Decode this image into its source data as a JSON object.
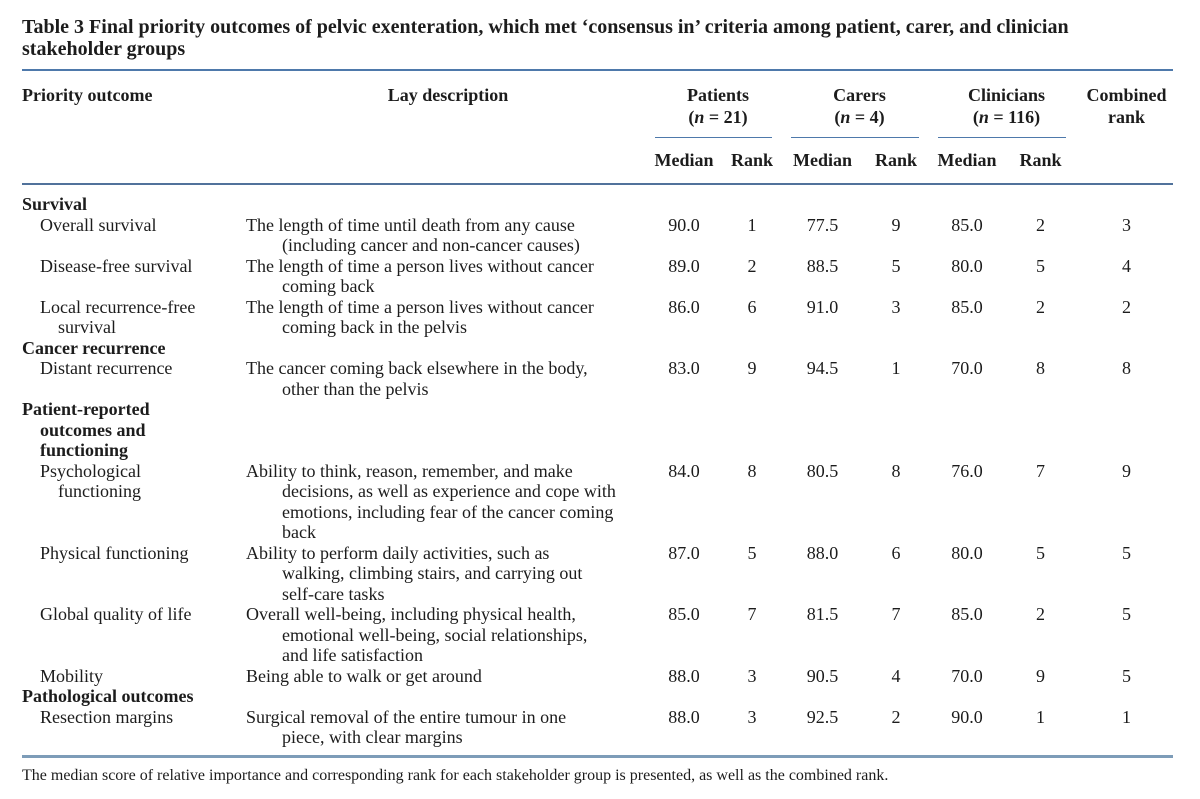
{
  "colors": {
    "rule-top": "#4e79ab",
    "rule-header": "#51729b",
    "rule-footer": "#7d9cb8",
    "rule-group": "#4e79ab",
    "ink": "#1c1c1c"
  },
  "title": "Table 3 Final priority outcomes of pelvic exenteration, which met ‘consensus in’ criteria among patient, carer, and clinician\nstakeholder groups",
  "header": {
    "col_outcome": "Priority outcome",
    "col_desc": "Lay description",
    "col_combined": "Combined\nrank",
    "median": "Median",
    "rank": "Rank",
    "groups": [
      {
        "name": "Patients",
        "n_open": "(",
        "n_italic": "n",
        "n_rest": " = 21)"
      },
      {
        "name": "Carers",
        "n_open": "(",
        "n_italic": "n",
        "n_rest": " = 4)"
      },
      {
        "name": "Clinicians",
        "n_open": "(",
        "n_italic": "n",
        "n_rest": " = 116)"
      }
    ]
  },
  "table": {
    "rows": [
      {
        "type": "section",
        "label": "Survival"
      },
      {
        "type": "data",
        "outcome": "Overall survival",
        "description": "The length of time until death from any cause\n(including cancer and non-cancer causes)",
        "patients": {
          "median": "90.0",
          "rank": "1"
        },
        "carers": {
          "median": "77.5",
          "rank": "9"
        },
        "clinicians": {
          "median": "85.0",
          "rank": "2"
        },
        "combined_rank": "3"
      },
      {
        "type": "data",
        "outcome": "Disease-free survival",
        "description": "The length of time a person lives without cancer\ncoming back",
        "patients": {
          "median": "89.0",
          "rank": "2"
        },
        "carers": {
          "median": "88.5",
          "rank": "5"
        },
        "clinicians": {
          "median": "80.0",
          "rank": "5"
        },
        "combined_rank": "4"
      },
      {
        "type": "data",
        "outcome": "Local recurrence-free\nsurvival",
        "description": "The length of time a person lives without cancer\ncoming back in the pelvis",
        "patients": {
          "median": "86.0",
          "rank": "6"
        },
        "carers": {
          "median": "91.0",
          "rank": "3"
        },
        "clinicians": {
          "median": "85.0",
          "rank": "2"
        },
        "combined_rank": "2"
      },
      {
        "type": "section",
        "label": "Cancer recurrence"
      },
      {
        "type": "data",
        "outcome": "Distant recurrence",
        "description": "The cancer coming back elsewhere in the body,\nother than the pelvis",
        "patients": {
          "median": "83.0",
          "rank": "9"
        },
        "carers": {
          "median": "94.5",
          "rank": "1"
        },
        "clinicians": {
          "median": "70.0",
          "rank": "8"
        },
        "combined_rank": "8"
      },
      {
        "type": "section",
        "label": "Patient-reported\noutcomes and\nfunctioning"
      },
      {
        "type": "data",
        "outcome": "Psychological\nfunctioning",
        "description": "Ability to think, reason, remember, and make\ndecisions, as well as experience and cope with\nemotions, including fear of the cancer coming\nback",
        "patients": {
          "median": "84.0",
          "rank": "8"
        },
        "carers": {
          "median": "80.5",
          "rank": "8"
        },
        "clinicians": {
          "median": "76.0",
          "rank": "7"
        },
        "combined_rank": "9"
      },
      {
        "type": "data",
        "outcome": "Physical functioning",
        "description": "Ability to perform daily activities, such as\nwalking, climbing stairs, and carrying out\nself-care tasks",
        "patients": {
          "median": "87.0",
          "rank": "5"
        },
        "carers": {
          "median": "88.0",
          "rank": "6"
        },
        "clinicians": {
          "median": "80.0",
          "rank": "5"
        },
        "combined_rank": "5"
      },
      {
        "type": "data",
        "outcome": "Global quality of life",
        "description": "Overall well-being, including physical health,\nemotional well-being, social relationships,\nand life satisfaction",
        "patients": {
          "median": "85.0",
          "rank": "7"
        },
        "carers": {
          "median": "81.5",
          "rank": "7"
        },
        "clinicians": {
          "median": "85.0",
          "rank": "2"
        },
        "combined_rank": "5"
      },
      {
        "type": "data",
        "outcome": "Mobility",
        "description": "Being able to walk or get around",
        "patients": {
          "median": "88.0",
          "rank": "3"
        },
        "carers": {
          "median": "90.5",
          "rank": "4"
        },
        "clinicians": {
          "median": "70.0",
          "rank": "9"
        },
        "combined_rank": "5"
      },
      {
        "type": "section",
        "label": "Pathological outcomes"
      },
      {
        "type": "data",
        "outcome": "Resection margins",
        "description": "Surgical removal of the entire tumour in one\npiece, with clear margins",
        "patients": {
          "median": "88.0",
          "rank": "3"
        },
        "carers": {
          "median": "92.5",
          "rank": "2"
        },
        "clinicians": {
          "median": "90.0",
          "rank": "1"
        },
        "combined_rank": "1"
      }
    ]
  },
  "footnote": "The median score of relative importance and corresponding rank for each stakeholder group is presented, as well as the combined rank."
}
